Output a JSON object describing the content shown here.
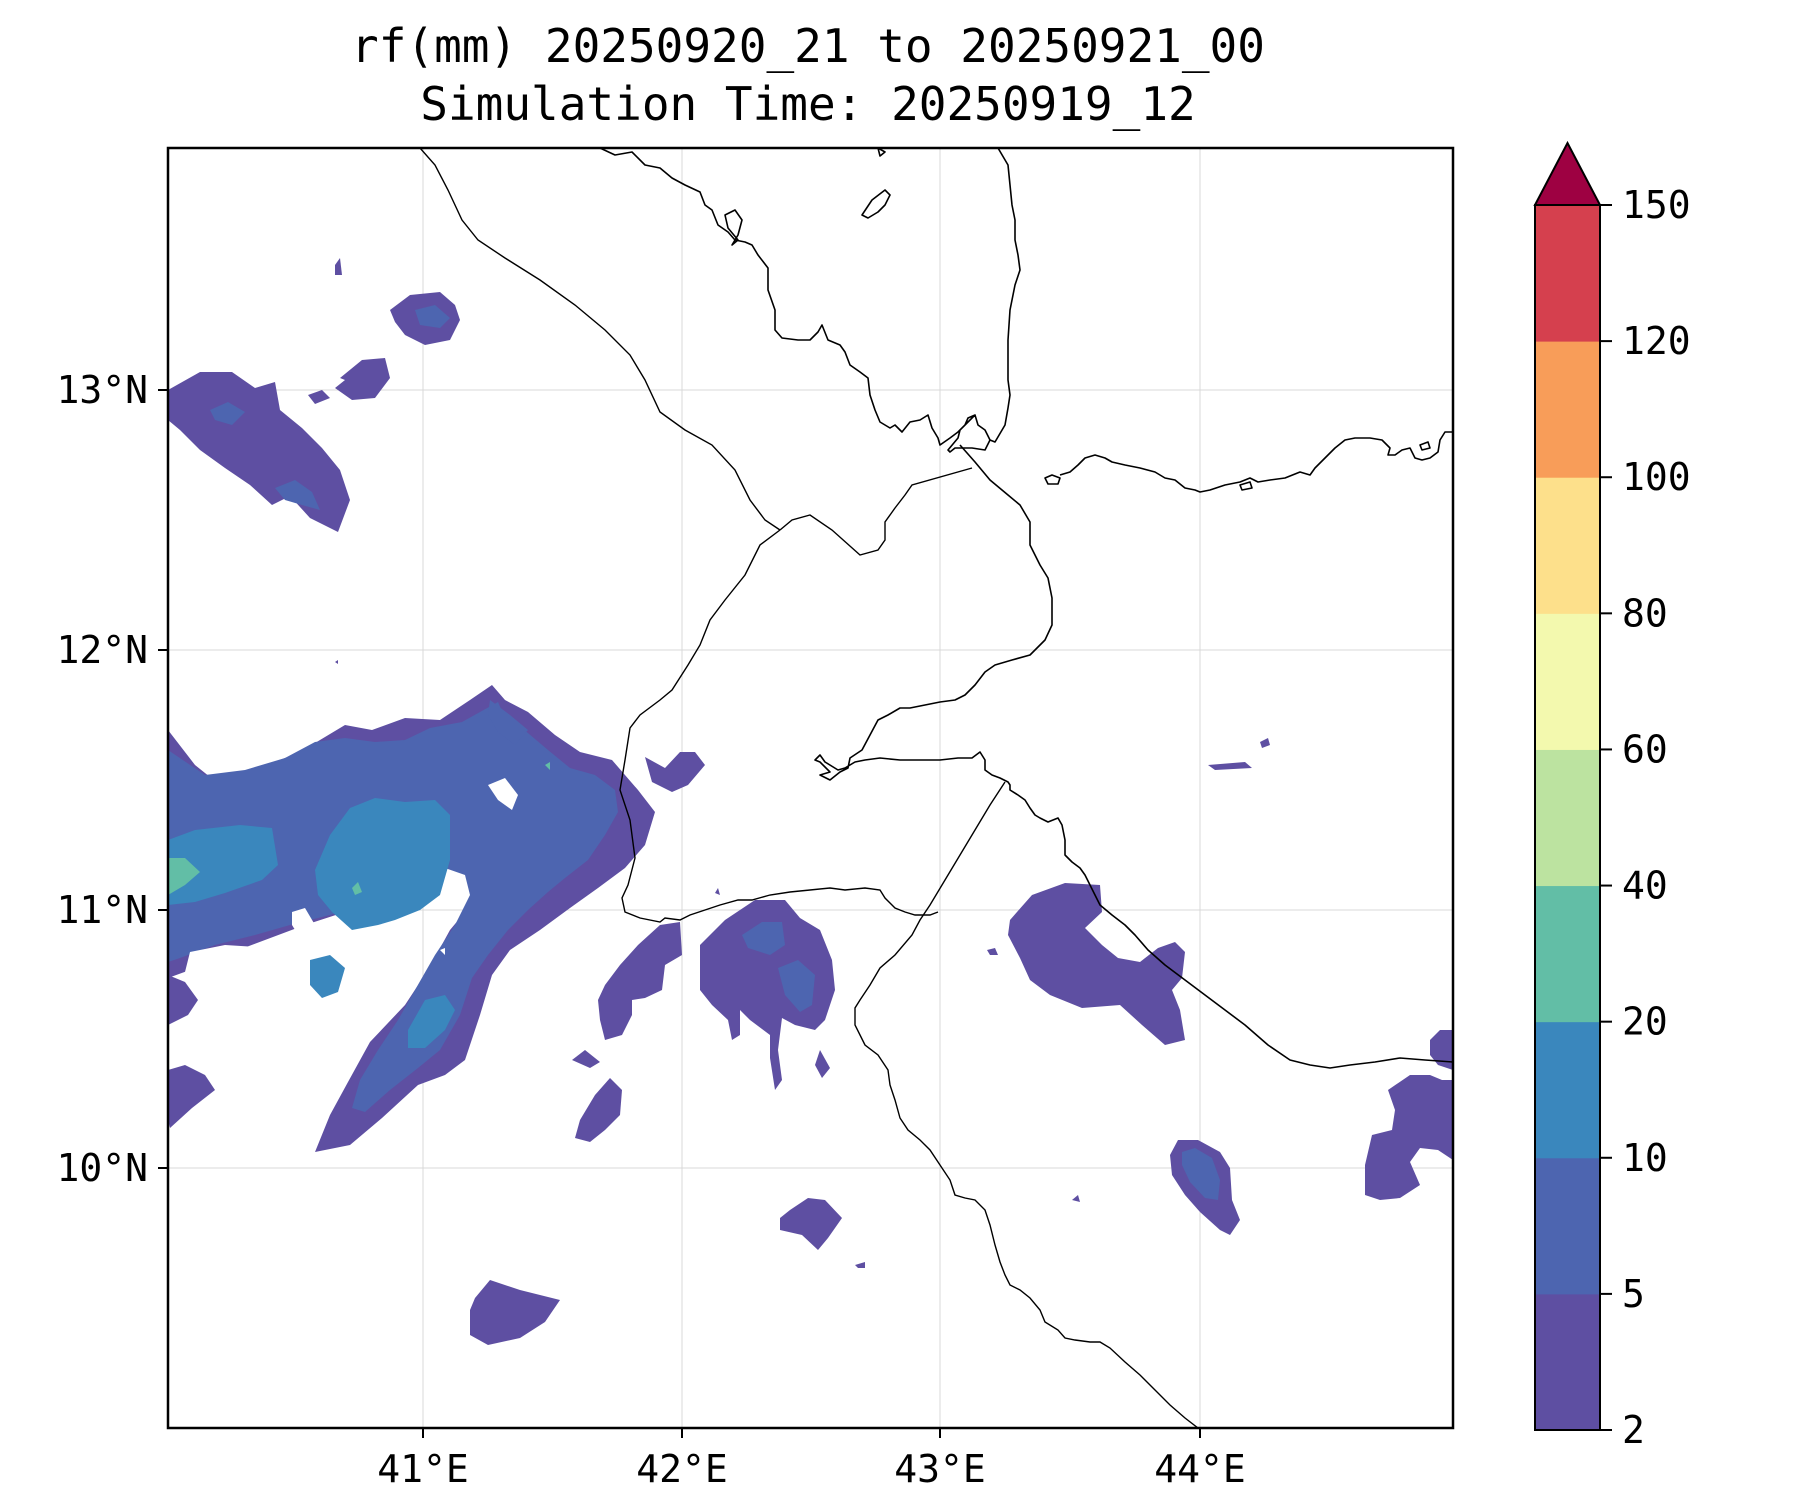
{
  "title": {
    "line1": "rf(mm) 20250920_21 to 20250921_00",
    "line2": "Simulation Time: 20250919_12"
  },
  "axes": {
    "lat_ticks": [
      "13°N",
      "12°N",
      "11°N",
      "10°N"
    ],
    "lon_ticks": [
      "41°E",
      "42°E",
      "43°E",
      "44°E"
    ]
  },
  "colorbar": {
    "levels": [
      "2",
      "5",
      "10",
      "20",
      "40",
      "60",
      "80",
      "100",
      "120",
      "150"
    ],
    "colors": [
      "#5e4fa2",
      "#4d65b0",
      "#3a87bd",
      "#62bea6",
      "#bce3a0",
      "#f3f9ae",
      "#fde08b",
      "#f89d59",
      "#d5404e",
      "#9e0142"
    ],
    "extend": "max"
  },
  "legend_colors": {
    "c2": "#5e4fa2",
    "c5": "#4d65b0",
    "c10": "#3a87bd",
    "c20": "#62bea6"
  }
}
